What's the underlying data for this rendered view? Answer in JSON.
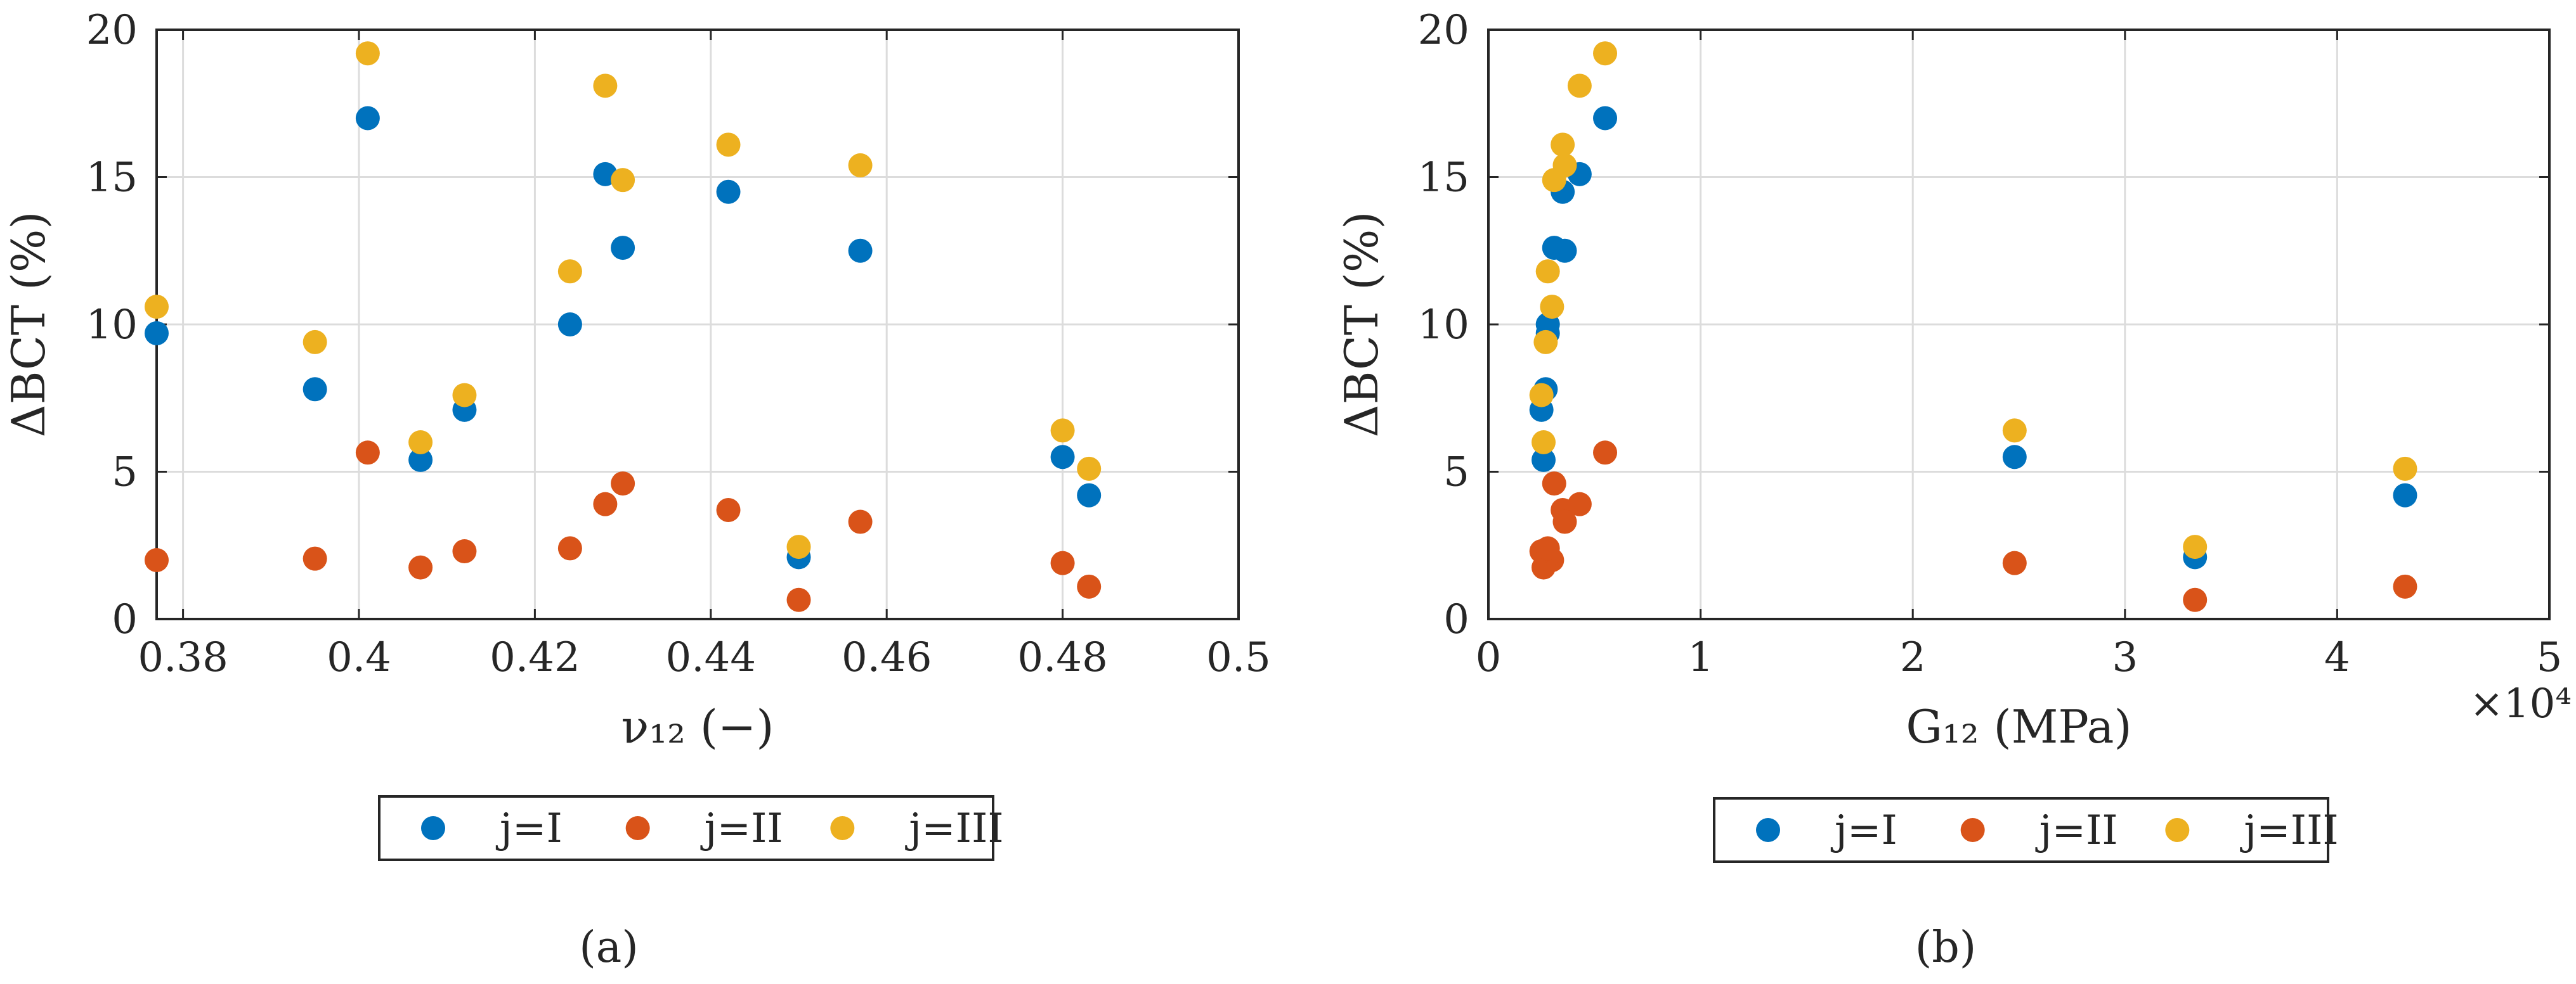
{
  "colors": {
    "series_I": "#0072BD",
    "series_II": "#D95319",
    "series_III": "#EDB120",
    "axis": "#262626",
    "grid": "#dcdcdc"
  },
  "panel_labels": [
    "(a)",
    "(b)"
  ],
  "chart_data": [
    {
      "type": "scatter",
      "panel": "(a)",
      "title": "",
      "xlabel": "ν₁₂ (−)",
      "ylabel": "ΔBCT (%)",
      "xlim": [
        0.377,
        0.5
      ],
      "ylim": [
        0,
        20
      ],
      "xticks": [
        0.38,
        0.4,
        0.42,
        0.44,
        0.46,
        0.48,
        0.5
      ],
      "xtick_labels": [
        "0.38",
        "0.4",
        "0.42",
        "0.44",
        "0.46",
        "0.48",
        "0.5"
      ],
      "yticks": [
        0,
        5,
        10,
        15,
        20
      ],
      "ytick_labels": [
        "0",
        "5",
        "10",
        "15",
        "20"
      ],
      "grid": true,
      "legend_position": "bottom",
      "x_exponent_label": "",
      "series": [
        {
          "name": "j=I",
          "color": "#0072BD",
          "x": [
            0.377,
            0.395,
            0.401,
            0.407,
            0.412,
            0.424,
            0.428,
            0.43,
            0.442,
            0.45,
            0.457,
            0.48,
            0.483
          ],
          "y": [
            9.7,
            7.8,
            17.0,
            5.4,
            7.1,
            10.0,
            15.1,
            12.6,
            14.5,
            2.1,
            12.5,
            5.5,
            4.2
          ]
        },
        {
          "name": "j=II",
          "color": "#D95319",
          "x": [
            0.377,
            0.395,
            0.401,
            0.407,
            0.412,
            0.424,
            0.428,
            0.43,
            0.442,
            0.45,
            0.457,
            0.48,
            0.483
          ],
          "y": [
            2.0,
            2.05,
            5.65,
            1.75,
            2.3,
            2.4,
            3.9,
            4.6,
            3.7,
            0.65,
            3.3,
            1.9,
            1.1
          ]
        },
        {
          "name": "j=III",
          "color": "#EDB120",
          "x": [
            0.377,
            0.395,
            0.401,
            0.407,
            0.412,
            0.424,
            0.428,
            0.43,
            0.442,
            0.45,
            0.457,
            0.48,
            0.483
          ],
          "y": [
            10.6,
            9.4,
            19.2,
            6.0,
            7.6,
            11.8,
            18.1,
            14.9,
            16.1,
            2.45,
            15.4,
            6.4,
            5.1
          ]
        }
      ]
    },
    {
      "type": "scatter",
      "panel": "(b)",
      "title": "",
      "xlabel": "G₁₂ (MPa)",
      "ylabel": "ΔBCT (%)",
      "xlim": [
        0,
        5
      ],
      "ylim": [
        0,
        20
      ],
      "xticks": [
        0,
        1,
        2,
        3,
        4,
        5
      ],
      "xtick_labels": [
        "0",
        "1",
        "2",
        "3",
        "4",
        "5"
      ],
      "yticks": [
        0,
        5,
        10,
        15,
        20
      ],
      "ytick_labels": [
        "0",
        "5",
        "10",
        "15",
        "20"
      ],
      "grid": true,
      "legend_position": "bottom",
      "x_exponent_label": "×10⁴",
      "series": [
        {
          "name": "j=I",
          "color": "#0072BD",
          "x": [
            0.28,
            0.27,
            0.55,
            0.26,
            0.25,
            0.28,
            0.43,
            0.31,
            0.35,
            3.33,
            0.36,
            2.48,
            4.32
          ],
          "y": [
            9.7,
            7.8,
            17.0,
            5.4,
            7.1,
            10.0,
            15.1,
            12.6,
            14.5,
            2.1,
            12.5,
            5.5,
            4.2
          ]
        },
        {
          "name": "j=II",
          "color": "#D95319",
          "x": [
            0.3,
            0.27,
            0.55,
            0.26,
            0.25,
            0.28,
            0.43,
            0.31,
            0.35,
            3.33,
            0.36,
            2.48,
            4.32
          ],
          "y": [
            2.0,
            2.05,
            5.65,
            1.75,
            2.3,
            2.4,
            3.9,
            4.6,
            3.7,
            0.65,
            3.3,
            1.9,
            1.1
          ]
        },
        {
          "name": "j=III",
          "color": "#EDB120",
          "x": [
            0.3,
            0.27,
            0.55,
            0.26,
            0.25,
            0.28,
            0.43,
            0.31,
            0.35,
            3.33,
            0.36,
            2.48,
            4.32
          ],
          "y": [
            10.6,
            9.4,
            19.2,
            6.0,
            7.6,
            11.8,
            18.1,
            14.9,
            16.1,
            2.45,
            15.4,
            6.4,
            5.1
          ]
        }
      ]
    }
  ]
}
